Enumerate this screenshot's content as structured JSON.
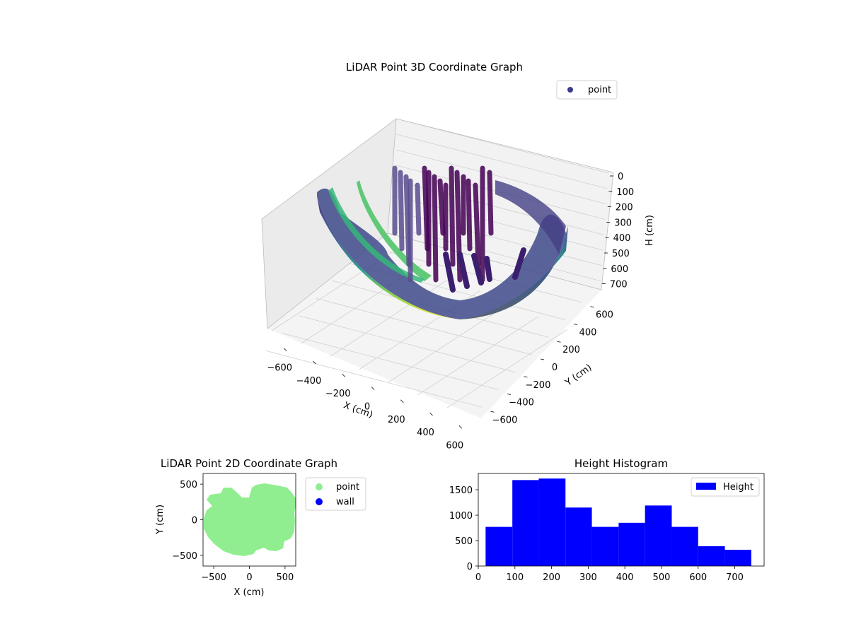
{
  "chart_data": [
    {
      "type": "scatter3d",
      "title": "LiDAR Point 3D Coordinate Graph",
      "xlabel": "X (cm)",
      "ylabel": "Y (cm)",
      "zlabel": "H (cm)",
      "xticks": [
        "−600",
        "−400",
        "−200",
        "0",
        "200",
        "400",
        "600"
      ],
      "yticks": [
        "−600",
        "−400",
        "−200",
        "0",
        "200",
        "400",
        "600"
      ],
      "zticks": [
        "0",
        "100",
        "200",
        "300",
        "400",
        "500",
        "600",
        "700"
      ],
      "xlim": [
        -650,
        650
      ],
      "ylim": [
        -650,
        650
      ],
      "zlim": [
        0,
        750
      ],
      "zinverted": true,
      "colormap": "viridis",
      "legend": [
        {
          "label": "point",
          "color": "#3b3b8f"
        }
      ]
    },
    {
      "type": "scatter",
      "title": "LiDAR Point 2D Coordinate Graph",
      "xlabel": "X (cm)",
      "ylabel": "Y (cm)",
      "xticks": [
        -500,
        0,
        500
      ],
      "yticks": [
        -500,
        0,
        500
      ],
      "xlim": [
        -650,
        650
      ],
      "ylim": [
        -650,
        650
      ],
      "legend": [
        {
          "label": "point",
          "color": "#90ee90"
        },
        {
          "label": "wall",
          "color": "#0000ff"
        }
      ]
    },
    {
      "type": "histogram",
      "title": "Height Histogram",
      "xlabel": "",
      "ylabel": "",
      "bins": [
        {
          "from": 20,
          "to": 93,
          "count": 770
        },
        {
          "from": 93,
          "to": 165,
          "count": 1690
        },
        {
          "from": 165,
          "to": 238,
          "count": 1720
        },
        {
          "from": 238,
          "to": 310,
          "count": 1150
        },
        {
          "from": 310,
          "to": 383,
          "count": 770
        },
        {
          "from": 383,
          "to": 455,
          "count": 850
        },
        {
          "from": 455,
          "to": 528,
          "count": 1190
        },
        {
          "from": 528,
          "to": 600,
          "count": 770
        },
        {
          "from": 600,
          "to": 673,
          "count": 390
        },
        {
          "from": 673,
          "to": 745,
          "count": 320
        }
      ],
      "xticks": [
        0,
        100,
        200,
        300,
        400,
        500,
        600,
        700
      ],
      "yticks": [
        0,
        500,
        1000,
        1500
      ],
      "xlim": [
        0,
        780
      ],
      "ylim": [
        0,
        1820
      ],
      "bar_color": "#0000ff",
      "legend": [
        {
          "label": "Height",
          "color": "#0000ff"
        }
      ]
    }
  ]
}
